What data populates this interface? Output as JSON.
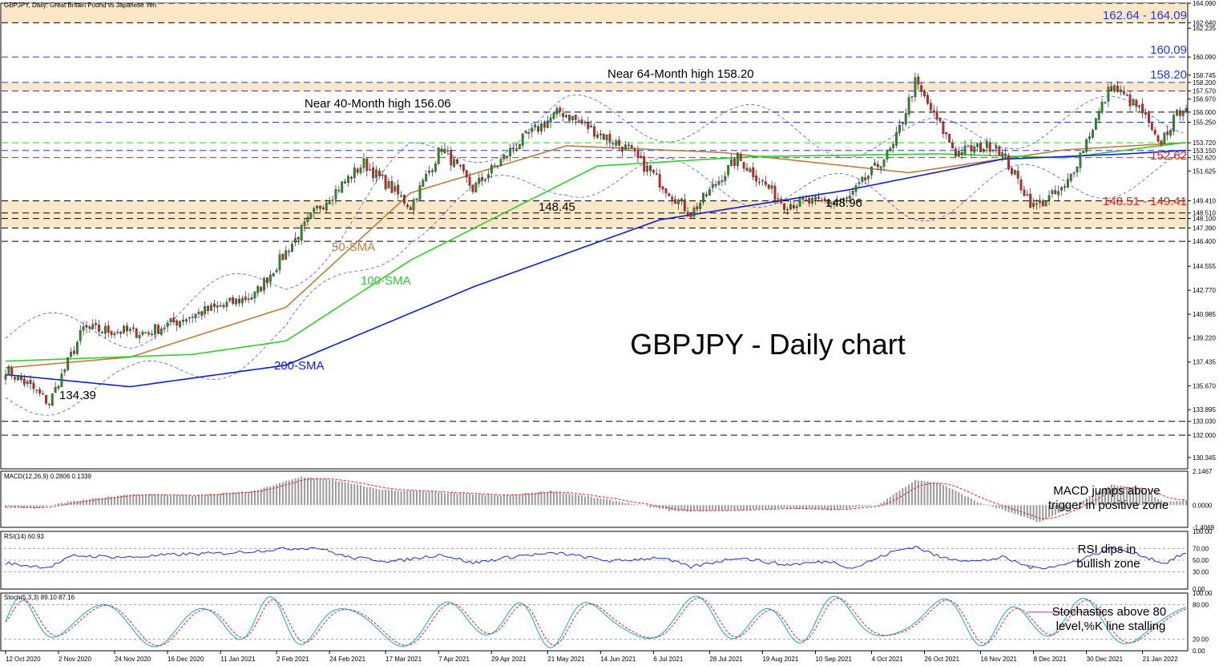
{
  "window": {
    "main_title": "GBPJPY, Daily:  Great Britain Pound vs Japanese Yen",
    "macd_title": "MACD(12,26,9) 0.2806 0.1339",
    "rsi_title": "RSI(14) 60.93",
    "stoch_title": "Stoch(5,3,3) 89.10 87.16"
  },
  "chart_data": [
    {
      "type": "candlestick",
      "title": "GBPJPY - Daily chart",
      "ylim": [
        129.5,
        164.09
      ],
      "y_ticks": [
        "164.090",
        "162.640",
        "162.235",
        "160.090",
        "158.745",
        "158.200",
        "157.570",
        "156.970",
        "156.000",
        "155.250",
        "153.720",
        "153.150",
        "152.620",
        "151.625",
        "149.410",
        "148.510",
        "148.100",
        "147.390",
        "146.400",
        "144.555",
        "142.770",
        "140.985",
        "139.220",
        "137.435",
        "135.670",
        "133.895",
        "133.030",
        "132.000",
        "130.345"
      ],
      "x_ticks": [
        "12 Oct 2020",
        "2 Nov 2020",
        "24 Nov 2020",
        "16 Dec 2020",
        "11 Jan 2021",
        "2 Feb 2021",
        "24 Feb 2021",
        "17 Mar 2021",
        "7 Apr 2021",
        "29 Apr 2021",
        "21 May 2021",
        "14 Jun 2021",
        "6 Jul 2021",
        "28 Jul 2021",
        "19 Aug 2021",
        "10 Sep 2021",
        "4 Oct 2021",
        "26 Oct 2021",
        "16 Nov 2021",
        "8 Dec 2021",
        "30 Dec 2021",
        "21 Jan 2022"
      ],
      "key_points": [
        {
          "x": 0,
          "close": 136.9
        },
        {
          "x": 8,
          "close": 135.6
        },
        {
          "x": 14,
          "close": 134.39
        },
        {
          "x": 25,
          "close": 139.9
        },
        {
          "x": 45,
          "close": 139.6
        },
        {
          "x": 60,
          "close": 140.9
        },
        {
          "x": 80,
          "close": 142.4
        },
        {
          "x": 100,
          "close": 148.8
        },
        {
          "x": 115,
          "close": 152.2
        },
        {
          "x": 130,
          "close": 149.0
        },
        {
          "x": 140,
          "close": 153.4
        },
        {
          "x": 150,
          "close": 150.3
        },
        {
          "x": 165,
          "close": 153.8
        },
        {
          "x": 178,
          "close": 156.06
        },
        {
          "x": 200,
          "close": 153.2
        },
        {
          "x": 220,
          "close": 148.45
        },
        {
          "x": 235,
          "close": 152.6
        },
        {
          "x": 250,
          "close": 149.2
        },
        {
          "x": 270,
          "close": 149.4
        },
        {
          "x": 285,
          "close": 153.4
        },
        {
          "x": 292,
          "close": 158.2
        },
        {
          "x": 305,
          "close": 153.0
        },
        {
          "x": 318,
          "close": 153.6
        },
        {
          "x": 330,
          "close": 148.96
        },
        {
          "x": 340,
          "close": 150.3
        },
        {
          "x": 355,
          "close": 158.0
        },
        {
          "x": 365,
          "close": 156.0
        },
        {
          "x": 370,
          "close": 153.5
        },
        {
          "x": 378,
          "close": 156.5
        }
      ],
      "series": [
        {
          "name": "50-SMA",
          "color": "#c27b3c",
          "points": [
            [
              0,
              137.0
            ],
            [
              40,
              137.8
            ],
            [
              90,
              141.5
            ],
            [
              130,
              150.0
            ],
            [
              180,
              153.5
            ],
            [
              230,
              153.0
            ],
            [
              290,
              151.5
            ],
            [
              340,
              153.2
            ],
            [
              378,
              153.72
            ]
          ]
        },
        {
          "name": "100-SMA",
          "color": "#2ecc2e",
          "points": [
            [
              0,
              137.5
            ],
            [
              60,
              138.0
            ],
            [
              90,
              139.0
            ],
            [
              130,
              145.0
            ],
            [
              190,
              152.0
            ],
            [
              240,
              152.7
            ],
            [
              300,
              152.9
            ],
            [
              340,
              152.6
            ],
            [
              378,
              153.72
            ]
          ]
        },
        {
          "name": "200-SMA",
          "color": "#0a1fd6",
          "points": [
            [
              0,
              136.5
            ],
            [
              40,
              135.6
            ],
            [
              90,
              137.2
            ],
            [
              150,
              143.0
            ],
            [
              210,
              148.0
            ],
            [
              270,
              150.2
            ],
            [
              320,
              152.5
            ],
            [
              360,
              152.9
            ],
            [
              378,
              153.15
            ]
          ]
        }
      ],
      "levels": [
        {
          "label": "162.64 - 164.09",
          "low": 162.64,
          "high": 164.09,
          "color": "#1a3fd6",
          "zone": true
        },
        {
          "label": "160.09",
          "value": 160.09,
          "color": "#1a3fd6"
        },
        {
          "label": "158.20",
          "value": 158.2,
          "color": "#1a3fd6"
        },
        {
          "label": "152.62",
          "value": 152.62,
          "color": "#e02020"
        },
        {
          "label": "148.51 - 149.41",
          "low": 148.51,
          "high": 149.41,
          "color": "#e02020",
          "zone": true
        },
        {
          "value": 157.57,
          "color": "#1a3fd6"
        },
        {
          "value": 156.0
        },
        {
          "value": 155.25,
          "color": "#1a3fd6"
        },
        {
          "value": 153.72,
          "color": "#2ecc2e"
        },
        {
          "value": 153.15,
          "color": "#1a3fd6"
        },
        {
          "value": 148.1
        },
        {
          "value": 147.39
        },
        {
          "value": 146.4
        },
        {
          "value": 133.03
        },
        {
          "value": 132.0
        }
      ],
      "zones": [
        {
          "low": 162.64,
          "high": 164.09
        },
        {
          "low": 157.57,
          "high": 158.2
        },
        {
          "low": 147.39,
          "high": 149.41
        }
      ],
      "annotations": {
        "high_64m": "Near 64-Month high 158.20",
        "high_40m": "Near 40-Month high 156.06",
        "low_14845": "148.45",
        "low_14896": "148.96",
        "low_13439": "134.39",
        "sma50": "50-SMA",
        "sma100": "100-SMA",
        "sma200": "200-SMA"
      },
      "colors": {
        "bull": "#2a8a2a",
        "bear": "#d42020",
        "zone": "#fde7c9"
      }
    },
    {
      "type": "bar",
      "name": "MACD",
      "ylim": [
        -1.4069,
        2.1467
      ],
      "y_ticks": [
        "2.1467",
        "0.0000",
        "-1.4069"
      ],
      "key_points": [
        [
          0,
          -0.1
        ],
        [
          10,
          -0.2
        ],
        [
          20,
          0.2
        ],
        [
          40,
          0.7
        ],
        [
          60,
          0.6
        ],
        [
          80,
          0.9
        ],
        [
          95,
          1.8
        ],
        [
          105,
          1.6
        ],
        [
          120,
          1.0
        ],
        [
          140,
          0.8
        ],
        [
          160,
          0.6
        ],
        [
          175,
          0.9
        ],
        [
          195,
          0.3
        ],
        [
          215,
          -0.4
        ],
        [
          235,
          -0.3
        ],
        [
          250,
          -0.2
        ],
        [
          265,
          -0.3
        ],
        [
          280,
          0.0
        ],
        [
          292,
          1.6
        ],
        [
          300,
          1.4
        ],
        [
          312,
          0.2
        ],
        [
          320,
          -0.3
        ],
        [
          332,
          -1.1
        ],
        [
          345,
          0.2
        ],
        [
          355,
          1.3
        ],
        [
          365,
          1.0
        ],
        [
          372,
          0.2
        ],
        [
          378,
          0.28
        ]
      ],
      "annotation": "MACD jumps above trigger in positive zone"
    },
    {
      "type": "line",
      "name": "RSI",
      "ylim": [
        0,
        100
      ],
      "y_ticks": [
        "100.00",
        "70.00",
        "50.00",
        "30.00",
        "0.00"
      ],
      "key_points": [
        [
          0,
          45
        ],
        [
          8,
          40
        ],
        [
          14,
          38
        ],
        [
          22,
          58
        ],
        [
          40,
          55
        ],
        [
          55,
          60
        ],
        [
          70,
          62
        ],
        [
          90,
          70
        ],
        [
          100,
          72
        ],
        [
          110,
          55
        ],
        [
          125,
          48
        ],
        [
          140,
          60
        ],
        [
          150,
          45
        ],
        [
          165,
          58
        ],
        [
          178,
          62
        ],
        [
          195,
          48
        ],
        [
          210,
          55
        ],
        [
          220,
          38
        ],
        [
          235,
          55
        ],
        [
          250,
          42
        ],
        [
          265,
          48
        ],
        [
          272,
          36
        ],
        [
          285,
          65
        ],
        [
          292,
          74
        ],
        [
          300,
          55
        ],
        [
          312,
          48
        ],
        [
          320,
          55
        ],
        [
          330,
          36
        ],
        [
          340,
          42
        ],
        [
          355,
          71
        ],
        [
          365,
          58
        ],
        [
          372,
          44
        ],
        [
          378,
          61
        ]
      ],
      "annotation": "RSI dips in bullish zone"
    },
    {
      "type": "line",
      "name": "Stochastics",
      "ylim": [
        0,
        100
      ],
      "y_ticks": [
        "100.00",
        "80.00",
        "20.00",
        "0.00"
      ],
      "annotation": "Stochastics above 80 level,%K line stalling"
    }
  ]
}
